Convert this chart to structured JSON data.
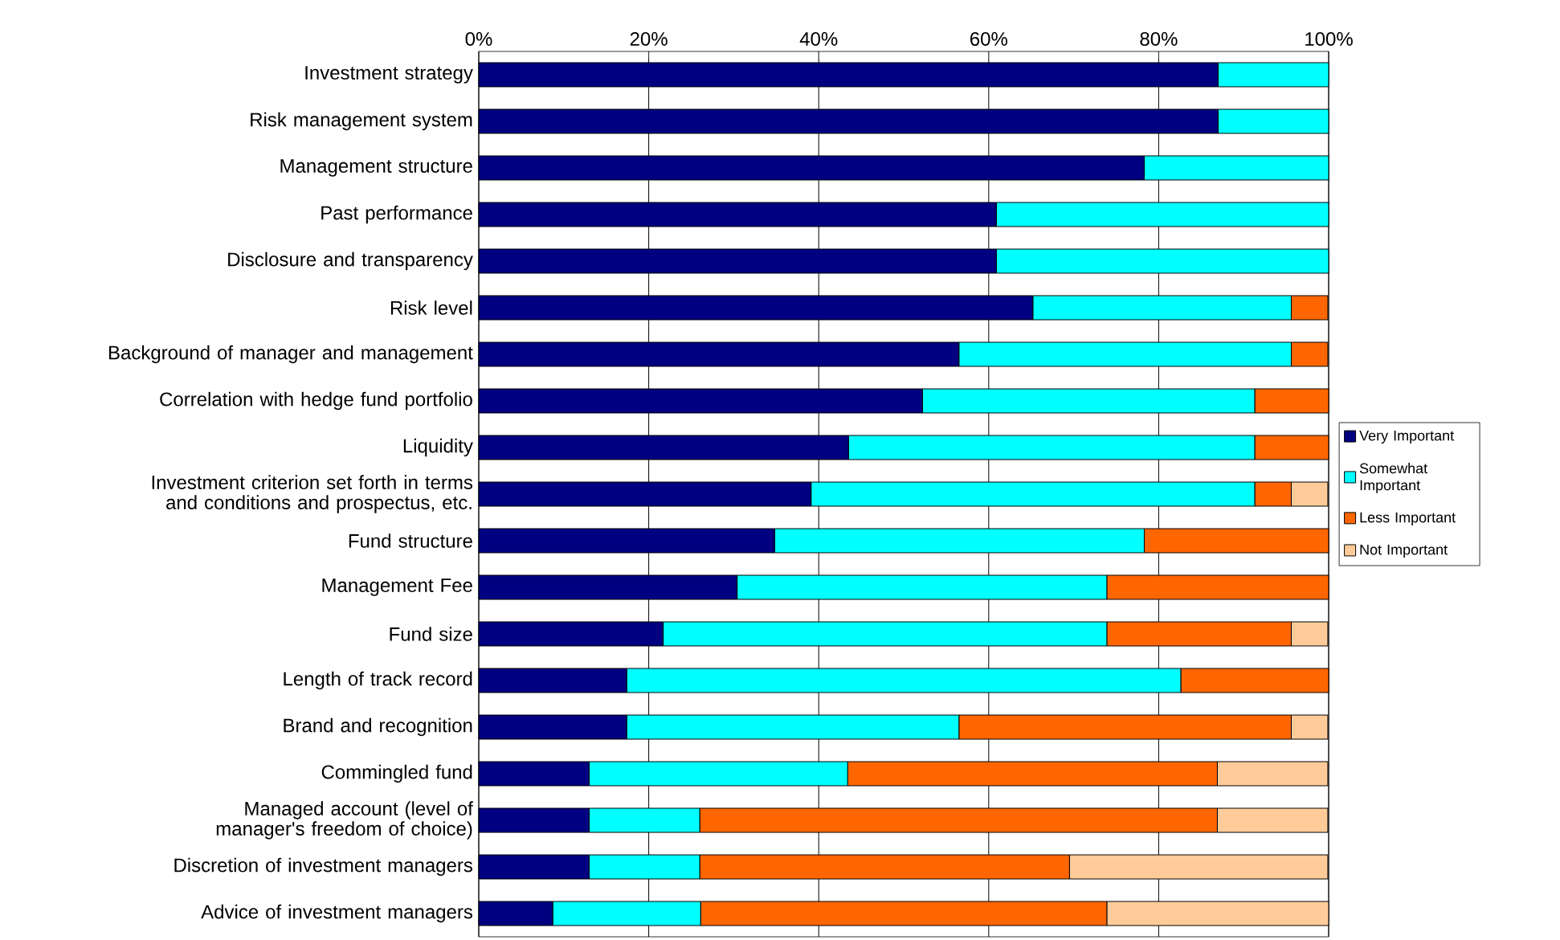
{
  "chart_data": {
    "type": "bar",
    "orientation": "horizontal",
    "stacked": true,
    "categories": [
      "Investment strategy",
      "Risk management system",
      "Management structure",
      "Past performance",
      "Disclosure and transparency",
      "Risk level",
      "Background of manager and management",
      "Correlation with hedge fund portfolio",
      "Liquidity",
      "Investment criterion set forth in terms and conditions and prospectus, etc.",
      "Fund structure",
      "Management Fee",
      "Fund size",
      "Length of track record",
      "Brand and recognition",
      "Commingled fund",
      "Managed account (level of manager's freedom of choice)",
      "Discretion of investment managers",
      "Advice of investment managers"
    ],
    "series": [
      {
        "name": "Very Important",
        "color": "#000080",
        "values": [
          87.0,
          87.0,
          78.3,
          60.9,
          60.9,
          65.2,
          56.5,
          52.2,
          43.5,
          39.1,
          34.8,
          30.4,
          21.7,
          17.4,
          17.4,
          13.0,
          13.0,
          13.0,
          8.7
        ]
      },
      {
        "name": "Somewhat Important",
        "color": "#00ffff",
        "values": [
          13.0,
          13.0,
          21.7,
          39.1,
          39.1,
          30.4,
          39.1,
          39.1,
          47.8,
          52.2,
          43.5,
          43.5,
          52.2,
          65.2,
          39.1,
          30.4,
          13.0,
          13.0,
          17.4
        ]
      },
      {
        "name": "Less Important",
        "color": "#ff6600",
        "values": [
          0,
          0,
          0,
          0,
          0,
          4.3,
          4.3,
          8.7,
          8.7,
          4.3,
          21.7,
          26.1,
          21.7,
          17.4,
          39.1,
          43.5,
          60.9,
          43.5,
          47.8
        ]
      },
      {
        "name": "Not Important",
        "color": "#ffcc99",
        "values": [
          0,
          0,
          0,
          0,
          0,
          0,
          0,
          0,
          0,
          4.3,
          0,
          0,
          4.3,
          0,
          4.3,
          13.0,
          13.0,
          30.4,
          26.1
        ]
      }
    ],
    "xlim": [
      0,
      100
    ],
    "xticks": [
      {
        "value": 0,
        "label": "0%"
      },
      {
        "value": 20,
        "label": "20%"
      },
      {
        "value": 40,
        "label": "40%"
      },
      {
        "value": 60,
        "label": "60%"
      },
      {
        "value": 80,
        "label": "80%"
      },
      {
        "value": 100,
        "label": "100%"
      }
    ],
    "grid": "x",
    "legend": "right"
  }
}
